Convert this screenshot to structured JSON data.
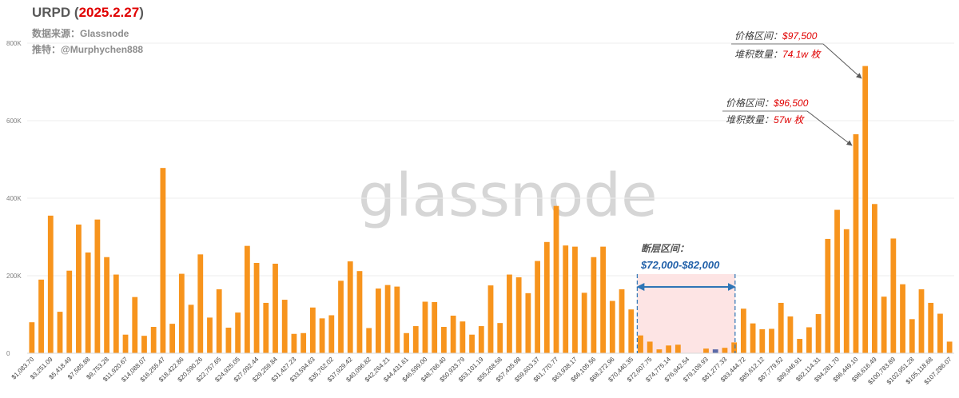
{
  "header": {
    "title_prefix": "URPD (",
    "title_date": "2025.2.27",
    "title_suffix": ")",
    "source": "数据来源：Glassnode",
    "twitter": "推特：@Murphychen888"
  },
  "watermark": "glassnode",
  "colors": {
    "bar": "#f7941d",
    "gap_bar": "#5b6aa8",
    "accent_red": "#e00000",
    "arrow_blue": "#2e75b6",
    "gap_fill": "#fde4e4"
  },
  "annotations": {
    "top": {
      "price_label": "价格区间：",
      "price_value": "$97,500",
      "amount_label": "堆积数量：",
      "amount_value": "74.1w 枚"
    },
    "mid": {
      "price_label": "价格区间：",
      "price_value": "$96,500",
      "amount_label": "堆积数量：",
      "amount_value": "57w 枚"
    },
    "gap": {
      "label": "断层区间：",
      "range": "$72,000-$82,000"
    }
  },
  "chart_data": {
    "type": "bar",
    "title": "URPD (2025.2.27)",
    "ylim": [
      0,
      800000
    ],
    "y_ticks": [
      "0",
      "200K",
      "400K",
      "600K",
      "800K"
    ],
    "y_tick_values": [
      0,
      200000,
      400000,
      600000,
      800000
    ],
    "x_tick_labels": [
      "$1,083.70",
      "$3,251.09",
      "$5,418.49",
      "$7,585.88",
      "$9,753.28",
      "$11,920.67",
      "$14,088.07",
      "$16,255.47",
      "$18,422.86",
      "$20,590.26",
      "$22,757.65",
      "$24,925.05",
      "$27,092.44",
      "$29,259.84",
      "$31,427.23",
      "$33,594.63",
      "$35,762.02",
      "$37,929.42",
      "$40,096.82",
      "$42,264.21",
      "$44,431.61",
      "$46,599.00",
      "$48,766.40",
      "$50,933.79",
      "$53,101.19",
      "$55,268.58",
      "$57,435.98",
      "$59,603.37",
      "$61,770.77",
      "$63,938.17",
      "$66,105.56",
      "$68,272.96",
      "$70,440.35",
      "$72,607.75",
      "$74,775.14",
      "$76,942.54",
      "$79,109.93",
      "$81,277.33",
      "$83,444.72",
      "$85,612.12",
      "$87,779.52",
      "$89,946.91",
      "$92,114.31",
      "$94,281.70",
      "$96,449.10",
      "$98,616.49",
      "$100,783.89",
      "$102,951.28",
      "$105,118.68",
      "$107,286.07"
    ],
    "values": [
      80000,
      190000,
      355000,
      107000,
      213000,
      332000,
      260000,
      345000,
      248000,
      203000,
      48000,
      145000,
      45000,
      68000,
      478000,
      76000,
      205000,
      125000,
      255000,
      92000,
      165000,
      66000,
      105000,
      277000,
      233000,
      130000,
      231000,
      138000,
      50000,
      52000,
      118000,
      90000,
      98000,
      187000,
      237000,
      212000,
      65000,
      167000,
      176000,
      172000,
      52000,
      70000,
      133000,
      132000,
      68000,
      97000,
      82000,
      48000,
      70000,
      175000,
      78000,
      203000,
      196000,
      155000,
      238000,
      287000,
      380000,
      278000,
      275000,
      156000,
      248000,
      275000,
      135000,
      165000,
      113000,
      46000,
      30000,
      10000,
      20000,
      22000,
      0,
      0,
      12000,
      10000,
      14000,
      28000,
      115000,
      77000,
      62000,
      63000,
      130000,
      95000,
      37000,
      67000,
      101000,
      295000,
      370000,
      320000,
      565000,
      741000,
      385000,
      146000,
      296000,
      178000,
      88000,
      165000,
      130000,
      102000,
      30000
    ],
    "gap_range_index": [
      65,
      75
    ],
    "gap_bar_index": 73
  }
}
